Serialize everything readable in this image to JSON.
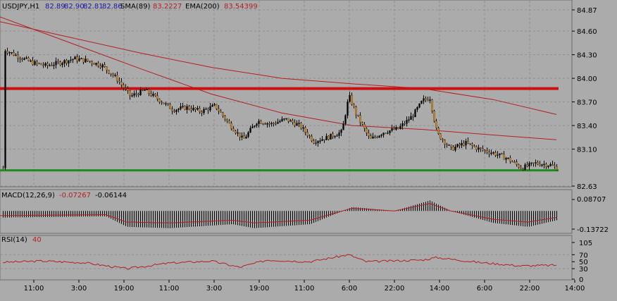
{
  "colors": {
    "background": "#ababab",
    "grid": "#8f8f8f",
    "bull_candle": "#000000",
    "bear_candle": "#e08a1a",
    "sma": "#b42020",
    "ema": "#b42020",
    "support": "#1e8c1e",
    "resistance": "#cc1010",
    "macd_line": "#b42020",
    "rsi_line": "#b42020",
    "text_black": "#000000",
    "text_blue": "#1a1aa0",
    "text_red": "#b42020"
  },
  "header": {
    "symbol": "USDJPY,H1",
    "open": "82.89",
    "high": "82.90",
    "low": "82.81",
    "close": "82.86",
    "sma_label": "SMA(89)",
    "sma_value": "83.2227",
    "ema_label": "EMA(200)",
    "ema_value": "83.54399"
  },
  "price_axis": [
    "84.87",
    "84.60",
    "84.30",
    "84.00",
    "83.70",
    "83.40",
    "83.10",
    "82.63"
  ],
  "macd": {
    "label": "MACD(12,26,9)",
    "v1": "-0.07267",
    "v2": "-0.06144",
    "axis_top": "0.08707",
    "axis_bottom": "-0.13722"
  },
  "rsi": {
    "label": "RSI(14)",
    "value": "40",
    "axis": [
      "105",
      "70",
      "50",
      "30",
      "0"
    ]
  },
  "time_axis": [
    "11:00",
    "3:00",
    "19:00",
    "11:00",
    "3:00",
    "19:00",
    "11:00",
    "6:00",
    "22:00",
    "14:00",
    "6:00",
    "22:00",
    "14:00"
  ],
  "chart_data": {
    "type": "candlestick",
    "symbol": "USDJPY",
    "timeframe": "H1",
    "ylim": [
      82.63,
      84.87
    ],
    "lines": {
      "resistance": 83.87,
      "support": 82.83
    },
    "sma_89": [
      [
        0,
        84.78
      ],
      [
        100,
        84.45
      ],
      [
        200,
        84.12
      ],
      [
        300,
        83.8
      ],
      [
        400,
        83.56
      ],
      [
        500,
        83.4
      ],
      [
        600,
        83.35
      ],
      [
        700,
        83.28
      ],
      [
        790,
        83.22
      ]
    ],
    "ema_200": [
      [
        0,
        84.72
      ],
      [
        100,
        84.52
      ],
      [
        200,
        84.32
      ],
      [
        300,
        84.14
      ],
      [
        400,
        84.0
      ],
      [
        500,
        83.93
      ],
      [
        600,
        83.87
      ],
      [
        700,
        83.73
      ],
      [
        790,
        83.54
      ]
    ],
    "close_path": [
      [
        5,
        84.37
      ],
      [
        25,
        84.28
      ],
      [
        45,
        84.2
      ],
      [
        65,
        84.16
      ],
      [
        85,
        84.2
      ],
      [
        105,
        84.25
      ],
      [
        125,
        84.22
      ],
      [
        145,
        84.16
      ],
      [
        165,
        84.0
      ],
      [
        185,
        83.77
      ],
      [
        205,
        83.85
      ],
      [
        225,
        83.73
      ],
      [
        245,
        83.6
      ],
      [
        265,
        83.63
      ],
      [
        285,
        83.58
      ],
      [
        305,
        83.65
      ],
      [
        325,
        83.42
      ],
      [
        345,
        83.22
      ],
      [
        365,
        83.46
      ],
      [
        385,
        83.42
      ],
      [
        405,
        83.48
      ],
      [
        425,
        83.4
      ],
      [
        445,
        83.2
      ],
      [
        465,
        83.25
      ],
      [
        485,
        83.32
      ],
      [
        495,
        83.78
      ],
      [
        505,
        83.55
      ],
      [
        525,
        83.22
      ],
      [
        545,
        83.32
      ],
      [
        565,
        83.36
      ],
      [
        585,
        83.52
      ],
      [
        600,
        83.72
      ],
      [
        610,
        83.75
      ],
      [
        620,
        83.3
      ],
      [
        640,
        83.1
      ],
      [
        660,
        83.18
      ],
      [
        680,
        83.1
      ],
      [
        700,
        83.05
      ],
      [
        720,
        82.98
      ],
      [
        740,
        82.86
      ],
      [
        760,
        82.92
      ],
      [
        780,
        82.9
      ],
      [
        790,
        82.86
      ]
    ],
    "macd_histogram_shape": [
      [
        0,
        -0.05
      ],
      [
        150,
        -0.04
      ],
      [
        180,
        -0.12
      ],
      [
        240,
        -0.13
      ],
      [
        330,
        -0.1
      ],
      [
        360,
        -0.13
      ],
      [
        440,
        -0.1
      ],
      [
        500,
        0.03
      ],
      [
        560,
        0.0
      ],
      [
        610,
        0.08
      ],
      [
        640,
        0.0
      ],
      [
        700,
        -0.09
      ],
      [
        750,
        -0.12
      ],
      [
        790,
        -0.07
      ]
    ],
    "rsi_values": [
      [
        0,
        48
      ],
      [
        60,
        52
      ],
      [
        120,
        47
      ],
      [
        180,
        30
      ],
      [
        240,
        46
      ],
      [
        300,
        52
      ],
      [
        340,
        34
      ],
      [
        380,
        55
      ],
      [
        440,
        50
      ],
      [
        495,
        70
      ],
      [
        520,
        50
      ],
      [
        600,
        55
      ],
      [
        620,
        62
      ],
      [
        680,
        48
      ],
      [
        740,
        38
      ],
      [
        790,
        40
      ]
    ]
  }
}
